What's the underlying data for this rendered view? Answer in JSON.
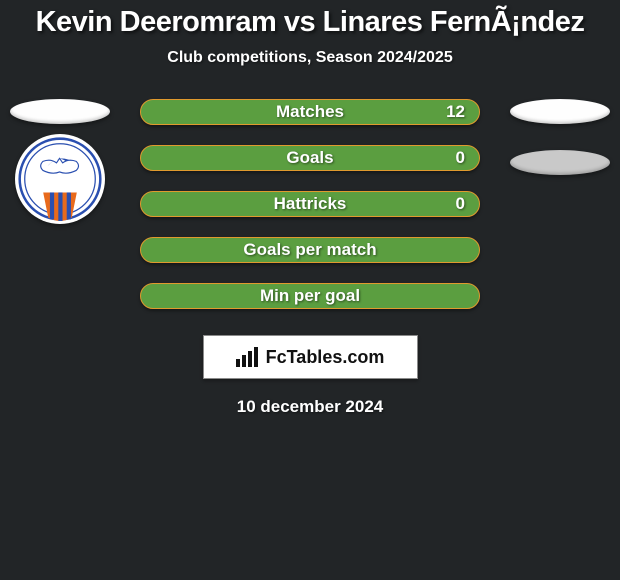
{
  "title": {
    "text": "Kevin Deeromram vs Linares FernÃ¡ndez",
    "fontsize": 29,
    "color": "#ffffff"
  },
  "subtitle": {
    "text": "Club competitions, Season 2024/2025",
    "fontsize": 16,
    "color": "#ffffff"
  },
  "ellipse": {
    "left_color": "#fefefe",
    "right1_color": "#fefefe",
    "right2_color": "#c9c9c9"
  },
  "bars": {
    "fill": "#5b9e40",
    "border": "#e09a2e",
    "label_fontsize": 17,
    "value_fontsize": 17,
    "items": [
      {
        "label": "Matches",
        "value": "12"
      },
      {
        "label": "Goals",
        "value": "0"
      },
      {
        "label": "Hattricks",
        "value": "0"
      },
      {
        "label": "Goals per match",
        "value": ""
      },
      {
        "label": "Min per goal",
        "value": ""
      }
    ]
  },
  "brand": {
    "text": "FcTables.com"
  },
  "date": {
    "text": "10 december 2024",
    "fontsize": 17
  },
  "badge": {
    "ring_color": "#2a4fb0",
    "horse_color": "#2a4fb0",
    "stripe1": "#e86a1c",
    "stripe2": "#2a4fb0"
  }
}
